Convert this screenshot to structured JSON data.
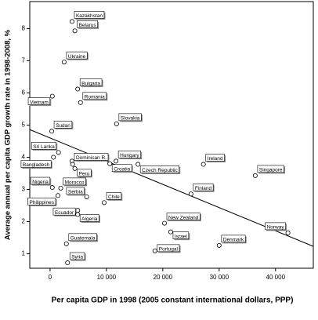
{
  "chart_data": {
    "type": "scatter",
    "x_label": "Per capita GDP in 1998 (2005 constant international dollars, PPP)",
    "y_label": "Average annual per capita GDP growth rate in 1998-2008, %",
    "labels": [
      "Kazakhstan",
      "Belarus",
      "Ukraine",
      "Bulgaria",
      "Vietnam",
      "Romania",
      "Slovakia",
      "Sudan",
      "Sri Lanka",
      "Bangladesh",
      "Dominican R.",
      "Hungary",
      "Peru",
      "Croatia",
      "Czech Republic",
      "Ireland",
      "Singapore",
      "Nigeria",
      "Morocco",
      "Serbia",
      "Philippines",
      "Chile",
      "Finland",
      "Ecuador",
      "Algeria",
      "New Zealand",
      "Israel",
      "Norway",
      "Denmark",
      "Guatemala",
      "Portugal",
      "Syria",
      null
    ],
    "x": [
      3900,
      4400,
      2500,
      4900,
      400,
      5400,
      11800,
      300,
      1500,
      600,
      3900,
      11700,
      4400,
      10600,
      15600,
      27200,
      36400,
      400,
      1900,
      6500,
      1400,
      9600,
      25000,
      4900,
      4900,
      20300,
      21400,
      42200,
      30000,
      2900,
      18600,
      3100,
      4000
    ],
    "y": [
      8.22,
      7.93,
      6.96,
      6.12,
      5.9,
      5.7,
      5.04,
      4.81,
      4.15,
      4.0,
      3.88,
      3.88,
      3.65,
      3.8,
      3.78,
      3.78,
      3.43,
      3.06,
      3.04,
      2.77,
      2.81,
      2.59,
      2.86,
      2.35,
      2.22,
      1.95,
      1.68,
      1.65,
      1.26,
      1.31,
      1.09,
      0.72,
      3.78
    ],
    "regression": {
      "x": [
        -3600,
        46700
      ],
      "y": [
        4.86,
        1.23
      ]
    },
    "xlim": [
      -3600,
      46700
    ],
    "ylim": [
      0.55,
      8.84
    ],
    "xticks": [
      0,
      {
        "value": 10000,
        "label": "10 000"
      },
      {
        "value": 20000,
        "label": "20 000"
      },
      {
        "value": 30000,
        "label": "30 000"
      },
      {
        "value": 40000,
        "label": "40 000"
      }
    ],
    "yticks": [
      1,
      2,
      3,
      4,
      5,
      6,
      7,
      8
    ],
    "grid": false
  }
}
